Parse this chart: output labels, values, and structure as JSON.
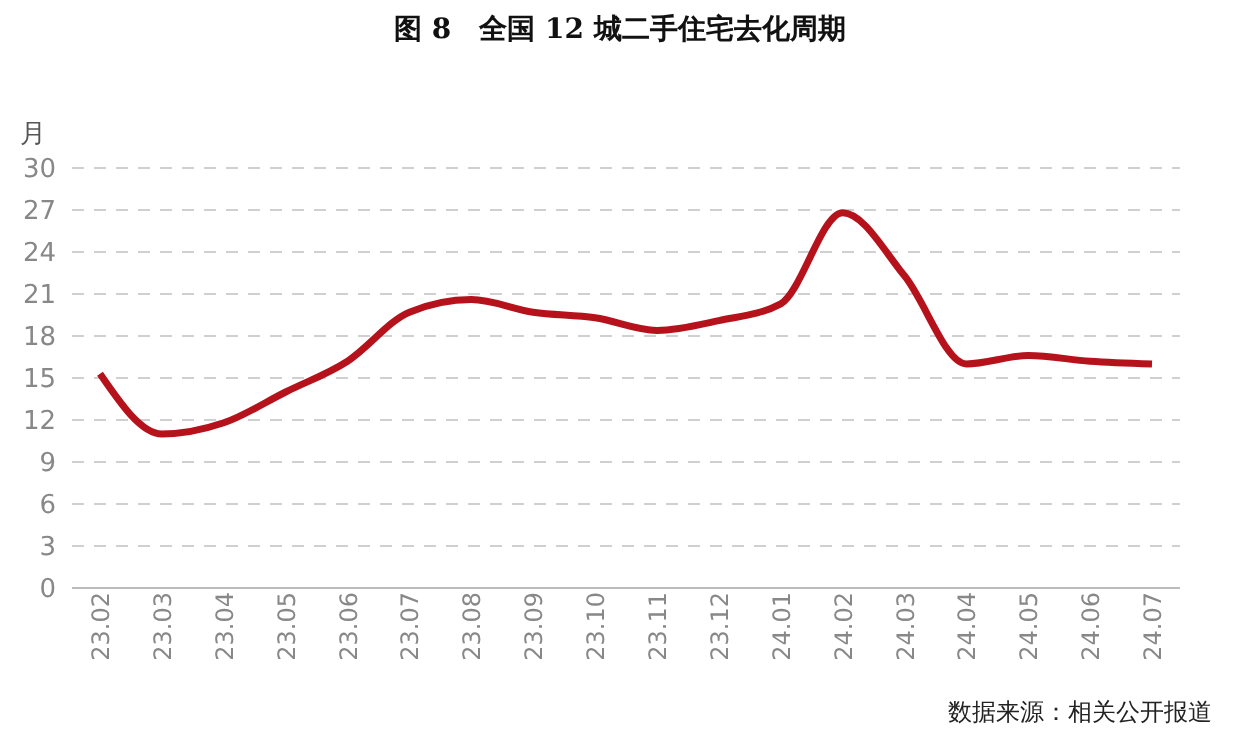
{
  "chart_data": {
    "type": "line",
    "title": "图 8　全国 12 城二手住宅去化周期",
    "ylabel": "月",
    "categories": [
      "23.02",
      "23.03",
      "23.04",
      "23.05",
      "23.06",
      "23.07",
      "23.08",
      "23.09",
      "23.10",
      "23.11",
      "23.12",
      "24.01",
      "24.02",
      "24.03",
      "24.04",
      "24.05",
      "24.06",
      "24.07"
    ],
    "series": [
      {
        "color": "#b5121b",
        "values": [
          15.3,
          11.0,
          11.8,
          14.0,
          16.2,
          19.7,
          20.6,
          19.7,
          19.3,
          18.4,
          19.1,
          20.3,
          26.8,
          22.3,
          16.0,
          16.6,
          16.2,
          16.0
        ]
      }
    ],
    "ylim": [
      0,
      30
    ],
    "yticks": [
      0,
      3,
      6,
      9,
      12,
      15,
      18,
      21,
      24,
      27,
      30
    ],
    "grid": "y",
    "legend": false,
    "marker": "none",
    "line_style": "solid",
    "annotations": [
      "数据来源：相关公开报道"
    ]
  }
}
